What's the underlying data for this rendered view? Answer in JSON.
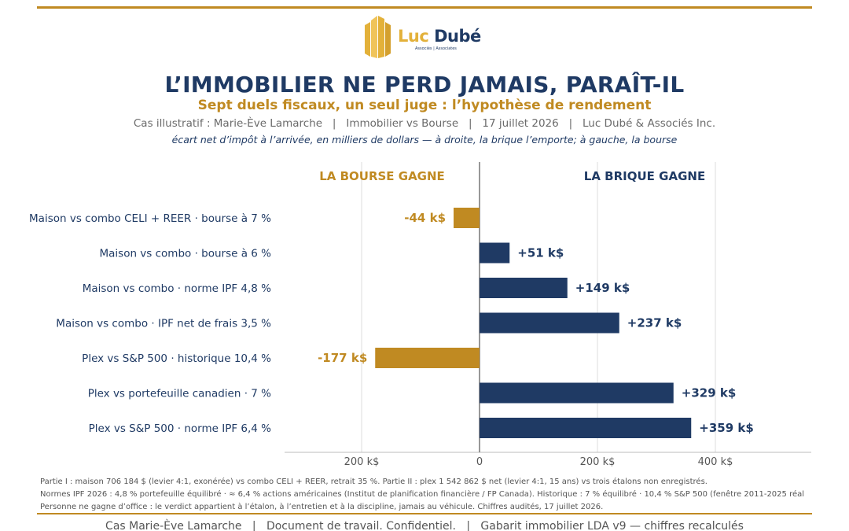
{
  "header": {
    "logo": {
      "brand_a": "Luc ",
      "brand_b": "Dubé",
      "tagline": "Associés | Associates",
      "icon": "building-logo-icon",
      "colors": {
        "gold": "#e3b13a",
        "navy": "#1f3a64"
      }
    },
    "title": "L’IMMOBILIER NE PERD JAMAIS, PARAÎT-IL",
    "subtitle": "Sept duels fiscaux, un seul juge : l’hypothèse de rendement",
    "context": "Cas illustratif : Marie-Ève Lamarche   |   Immobilier vs Bourse   |   17 juillet 2026   |   Luc Dubé & Associés Inc.",
    "caption": "écart net d’impôt à l’arrivée, en milliers de dollars — à droite, la brique l’emporte; à gauche, la bourse"
  },
  "chart_data": {
    "type": "bar",
    "orientation": "horizontal",
    "categories": [
      "Maison vs combo CELI + REER · bourse à 7 %",
      "Maison vs combo · bourse à 6 %",
      "Maison vs combo · norme IPF 4,8 %",
      "Maison vs combo · IPF net de frais 3,5 %",
      "Plex vs S&P 500 · historique 10,4 %",
      "Plex vs portefeuille canadien · 7 %",
      "Plex vs S&P 500 · norme IPF 6,4 %"
    ],
    "values": [
      -44,
      51,
      149,
      237,
      -177,
      329,
      359
    ],
    "data_labels": [
      "-44 k$",
      "+51 k$",
      "+149 k$",
      "+237 k$",
      "-177 k$",
      "+329 k$",
      "+359 k$"
    ],
    "xlim": [
      -330,
      560
    ],
    "xticks": [
      -200,
      0,
      200,
      400
    ],
    "xtick_labels": [
      "200 k$",
      "0",
      "200 k$",
      "400 k$"
    ],
    "region_labels": {
      "negative": "LA BOURSE GAGNE",
      "positive": "LA BRIQUE GAGNE"
    },
    "grid": true,
    "colors": {
      "negative": "#c08a22",
      "positive": "#1f3a64",
      "grid": "#dddddd",
      "zero": "#777777"
    }
  },
  "notes": [
    "Partie I : maison 706 184 $ (levier 4:1, exonérée) vs combo CELI + REER, retrait 35 %. Partie II : plex 1 542 862 $ net (levier 4:1, 15 ans) vs trois étalons non enregistrés.",
    "Normes IPF 2026 : 4,8 % portefeuille équilibré · ≈ 6,4 % actions américaines (Institut de planification financière / FP Canada). Historique : 7 % équilibré · 10,4 % S&P 500 (fenêtre 2011-2025 réal",
    "Personne ne gagne d’office : le verdict appartient à l’étalon, à l’entretien et à la discipline, jamais au véhicule. Chiffres audités, 17 juillet 2026."
  ],
  "footer": "Cas Marie-Ève Lamarche   |   Document de travail. Confidentiel.   |   Gabarit immobilier LDA v9 — chiffres recalculés"
}
